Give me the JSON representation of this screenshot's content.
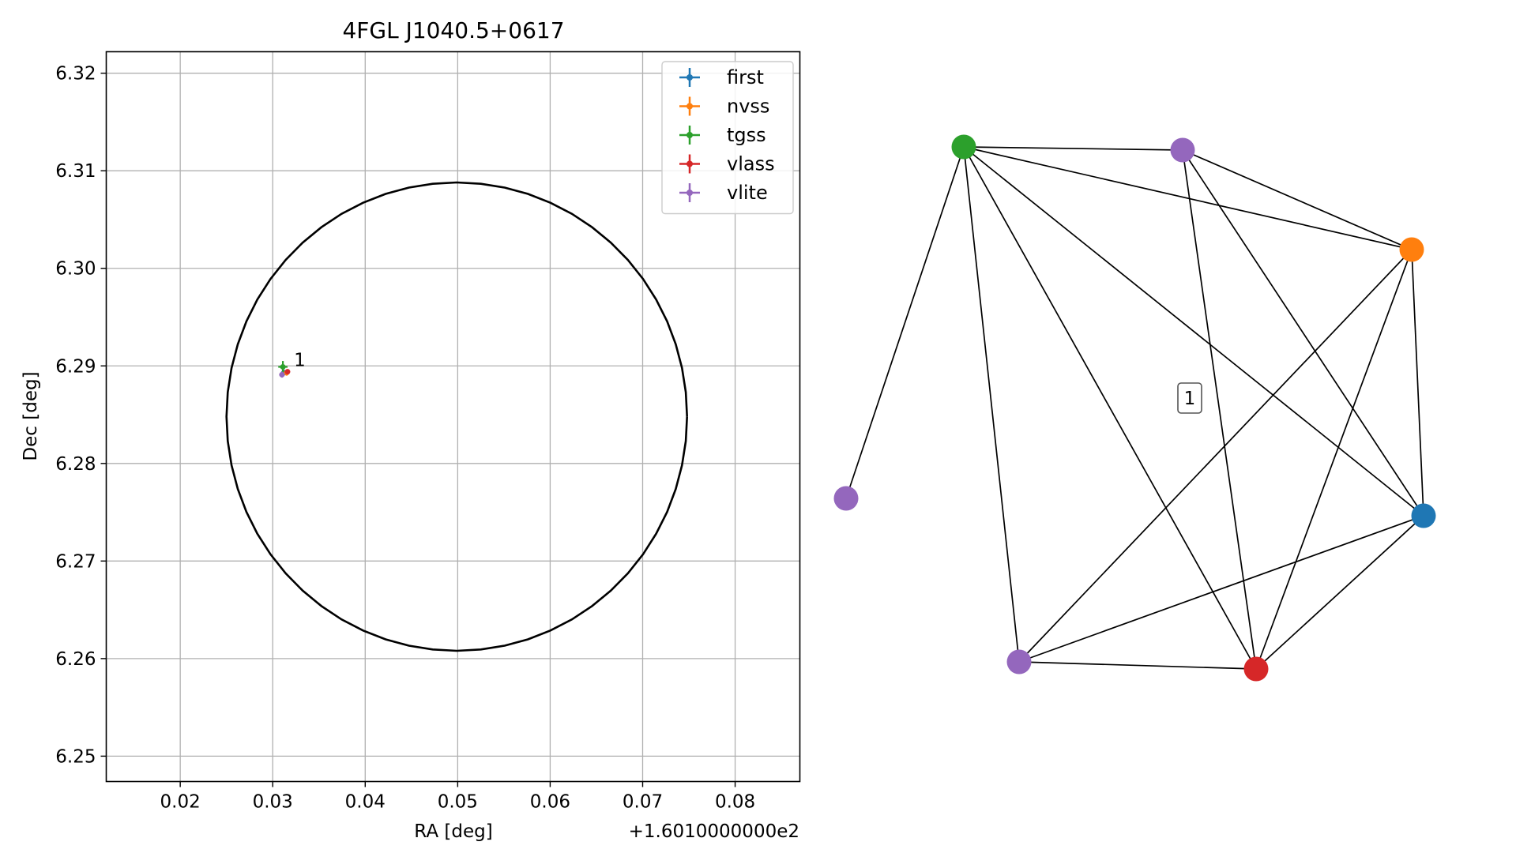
{
  "chart_data": [
    {
      "type": "scatter",
      "title": "4FGL J1040.5+0617",
      "xlabel": "RA [deg]",
      "ylabel": "Dec [deg]",
      "x_offset_label": "+1.6010000000e2",
      "xlim": [
        0.012,
        0.087
      ],
      "ylim": [
        6.2474,
        6.3222
      ],
      "x_ticks": [
        0.02,
        0.03,
        0.04,
        0.05,
        0.06,
        0.07,
        0.08
      ],
      "x_tick_labels": [
        "0.02",
        "0.03",
        "0.04",
        "0.05",
        "0.06",
        "0.07",
        "0.08"
      ],
      "y_ticks": [
        6.25,
        6.26,
        6.27,
        6.28,
        6.29,
        6.3,
        6.31,
        6.32
      ],
      "y_tick_labels": [
        "6.25",
        "6.26",
        "6.27",
        "6.28",
        "6.29",
        "6.30",
        "6.31",
        "6.32"
      ],
      "grid": true,
      "legend_position": "top-right",
      "circle": {
        "center": [
          0.0499,
          6.2848
        ],
        "radius_x": 0.0249,
        "radius_y": 0.024,
        "color": "#000000"
      },
      "series": [
        {
          "name": "first",
          "color": "#1f77b4",
          "points": [
            {
              "x": 0.0312,
              "y": 6.2893,
              "xerr": 0.0003,
              "yerr": 0.0003
            }
          ]
        },
        {
          "name": "nvss",
          "color": "#ff7f0e",
          "points": [
            {
              "x": 0.0315,
              "y": 6.2893,
              "xerr": 0.0003,
              "yerr": 0.0003
            }
          ]
        },
        {
          "name": "tgss",
          "color": "#2ca02c",
          "points": [
            {
              "x": 0.0311,
              "y": 6.2899,
              "xerr": 0.0005,
              "yerr": 0.0006
            }
          ]
        },
        {
          "name": "vlass",
          "color": "#d62728",
          "points": [
            {
              "x": 0.0316,
              "y": 6.2894,
              "xerr": 0.0002,
              "yerr": 0.0002
            }
          ]
        },
        {
          "name": "vlite",
          "color": "#9467bd",
          "points": [
            {
              "x": 0.031,
              "y": 6.2891,
              "xerr": 0.0003,
              "yerr": 0.0003
            }
          ]
        }
      ],
      "annotations": [
        {
          "text": "1",
          "x": 0.0323,
          "y": 6.2898
        }
      ]
    },
    {
      "type": "network",
      "nodes": [
        {
          "id": "green",
          "color": "#2ca02c"
        },
        {
          "id": "purple1",
          "color": "#9467bd"
        },
        {
          "id": "orange",
          "color": "#ff7f0e"
        },
        {
          "id": "purple2",
          "color": "#9467bd"
        },
        {
          "id": "blue",
          "color": "#1f77b4"
        },
        {
          "id": "purple3",
          "color": "#9467bd"
        },
        {
          "id": "red",
          "color": "#d62728"
        }
      ],
      "edges": [
        [
          "green",
          "purple1"
        ],
        [
          "green",
          "orange"
        ],
        [
          "green",
          "purple2"
        ],
        [
          "green",
          "blue"
        ],
        [
          "green",
          "purple3"
        ],
        [
          "green",
          "red"
        ],
        [
          "purple1",
          "orange"
        ],
        [
          "purple1",
          "blue"
        ],
        [
          "purple1",
          "red"
        ],
        [
          "orange",
          "blue"
        ],
        [
          "orange",
          "purple3"
        ],
        [
          "orange",
          "red"
        ],
        [
          "blue",
          "purple3"
        ],
        [
          "blue",
          "red"
        ],
        [
          "purple3",
          "red"
        ]
      ],
      "label": "1"
    }
  ]
}
